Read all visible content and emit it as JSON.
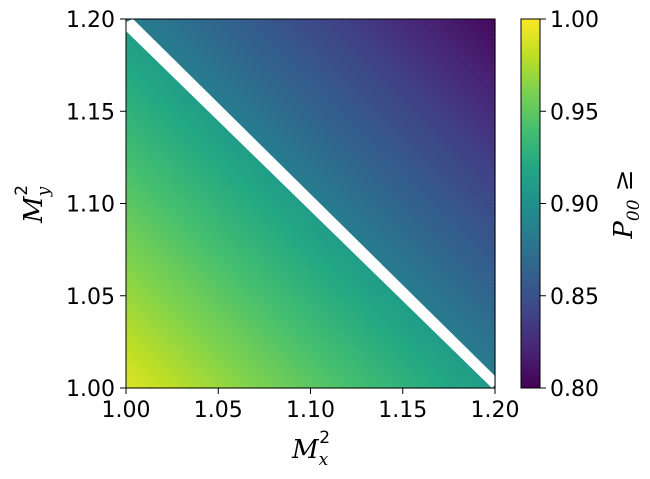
{
  "chart_data": {
    "type": "heatmap",
    "title": "",
    "xlabel": {
      "base": "M",
      "sub": "x",
      "sup": "2"
    },
    "ylabel": {
      "base": "M",
      "sub": "y",
      "sup": "2"
    },
    "colorbar_label": {
      "base": "P",
      "sub": "00",
      "suffix": " ≥"
    },
    "xlim": [
      1.0,
      1.2
    ],
    "ylim": [
      1.0,
      1.2
    ],
    "clim": [
      0.8,
      1.0
    ],
    "colormap": "viridis",
    "x_ticks": [
      1.0,
      1.05,
      1.1,
      1.15,
      1.2
    ],
    "x_tick_labels": [
      "1.00",
      "1.05",
      "1.10",
      "1.15",
      "1.20"
    ],
    "y_ticks": [
      1.0,
      1.05,
      1.1,
      1.15,
      1.2
    ],
    "y_tick_labels": [
      "1.00",
      "1.05",
      "1.10",
      "1.15",
      "1.20"
    ],
    "colorbar_ticks": [
      0.8,
      0.85,
      0.9,
      0.95,
      1.0
    ],
    "colorbar_tick_labels": [
      "0.80",
      "0.85",
      "0.90",
      "0.95",
      "1.00"
    ],
    "regions": [
      {
        "name": "below diagonal",
        "condition": "Mx2 + My2 < 2.2",
        "corner_values": {
          "1.00,1.00": 0.99,
          "1.20,1.00": 0.91,
          "1.00,1.20": 0.91
        }
      },
      {
        "name": "above diagonal",
        "condition": "Mx2 + My2 > 2.2",
        "corner_values": {
          "1.20,1.00": 0.885,
          "1.00,1.20": 0.885,
          "1.20,1.20": 0.805
        }
      }
    ],
    "boundary": {
      "line": "Mx2 + My2 = 2.2",
      "color": "#ffffff"
    }
  }
}
